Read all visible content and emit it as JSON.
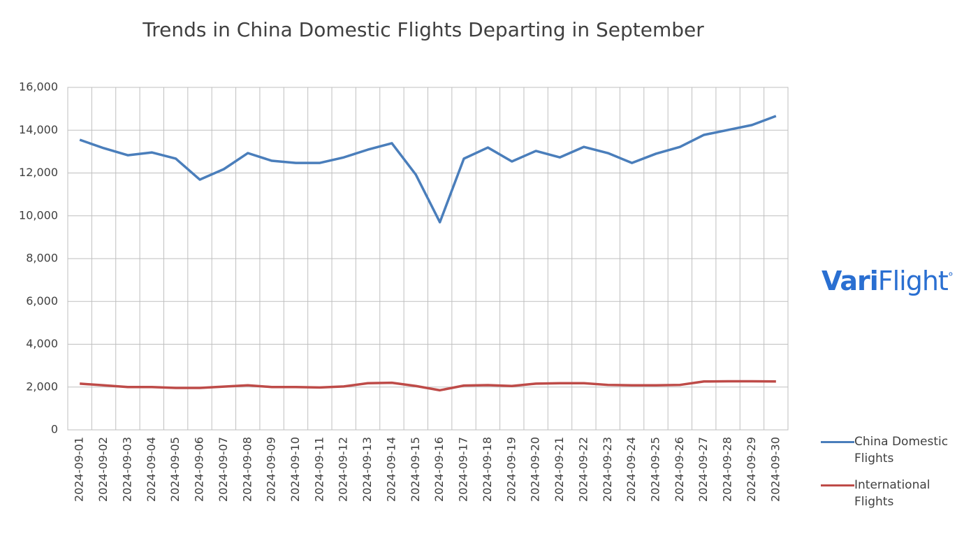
{
  "chart_data": {
    "type": "line",
    "title": "Trends in China Domestic Flights Departing in September",
    "x": [
      "2024-09-01",
      "2024-09-02",
      "2024-09-03",
      "2024-09-04",
      "2024-09-05",
      "2024-09-06",
      "2024-09-07",
      "2024-09-08",
      "2024-09-09",
      "2024-09-10",
      "2024-09-11",
      "2024-09-12",
      "2024-09-13",
      "2024-09-14",
      "2024-09-15",
      "2024-09-16",
      "2024-09-17",
      "2024-09-18",
      "2024-09-19",
      "2024-09-20",
      "2024-09-21",
      "2024-09-22",
      "2024-09-23",
      "2024-09-24",
      "2024-09-25",
      "2024-09-26",
      "2024-09-27",
      "2024-09-28",
      "2024-09-29",
      "2024-09-30"
    ],
    "series": [
      {
        "name": "China Domestic Flights",
        "color": "#4a7ebb",
        "values": [
          13550,
          13160,
          12830,
          12960,
          12670,
          11690,
          12180,
          12930,
          12570,
          12470,
          12470,
          12730,
          13090,
          13390,
          11920,
          9700,
          12670,
          13190,
          12540,
          13030,
          12730,
          13220,
          12930,
          12470,
          12900,
          13220,
          13780,
          14010,
          14240,
          14660
        ]
      },
      {
        "name": "International Flights",
        "color": "#be4b48",
        "values": [
          2160,
          2080,
          2000,
          2000,
          1960,
          1960,
          2020,
          2080,
          2000,
          2000,
          1980,
          2030,
          2180,
          2200,
          2050,
          1850,
          2070,
          2090,
          2050,
          2160,
          2180,
          2180,
          2100,
          2080,
          2080,
          2100,
          2260,
          2270,
          2270,
          2260
        ]
      }
    ],
    "ylim": [
      0,
      16000
    ],
    "yticks": [
      0,
      {
        "value": 2000,
        "label": "2,000"
      },
      {
        "value": 4000,
        "label": "4,000"
      },
      {
        "value": 6000,
        "label": "6,000"
      },
      {
        "value": 8000,
        "label": "8,000"
      },
      {
        "value": 10000,
        "label": "10,000"
      },
      {
        "value": 12000,
        "label": "12,000"
      },
      {
        "value": 14000,
        "label": "14,000"
      },
      {
        "value": 16000,
        "label": "16,000"
      }
    ],
    "grid": true,
    "legend": "right",
    "logo": {
      "bold": "Vari",
      "light": "Flight"
    }
  }
}
